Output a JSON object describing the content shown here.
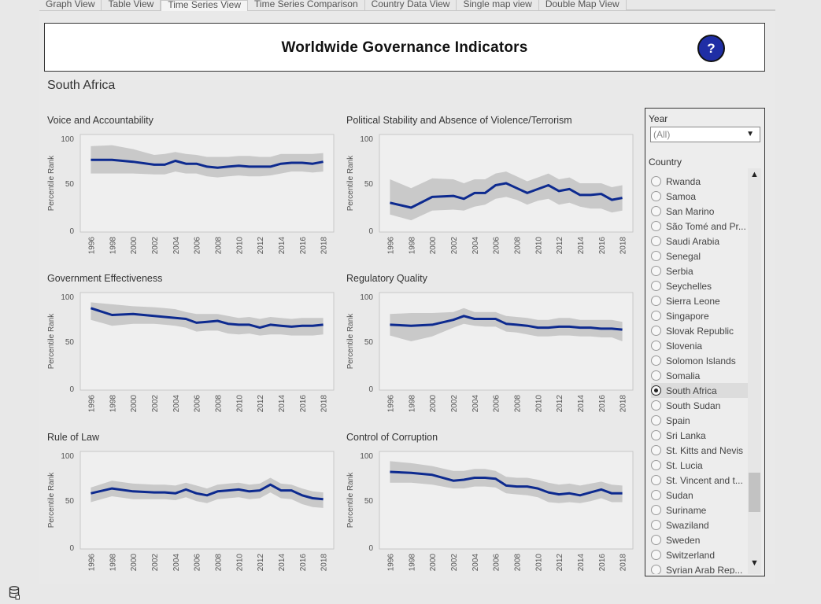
{
  "tabs": [
    {
      "label": "Graph View",
      "active": false
    },
    {
      "label": "Table View",
      "active": false
    },
    {
      "label": "Time Series View",
      "active": true
    },
    {
      "label": "Time Series Comparison",
      "active": false
    },
    {
      "label": "Country Data View",
      "active": false
    },
    {
      "label": "Single map view",
      "active": false
    },
    {
      "label": "Double Map View",
      "active": false
    }
  ],
  "header": {
    "title": "Worldwide Governance Indicators",
    "help_label": "?"
  },
  "country_heading": "South Africa",
  "chart_data": [
    {
      "type": "area",
      "title": "Voice and Accountability",
      "ylabel": "Percentile Rank",
      "ylim": [
        0,
        100
      ],
      "yticks": [
        0,
        50,
        100
      ],
      "x": [
        1996,
        1998,
        2000,
        2002,
        2003,
        2004,
        2005,
        2006,
        2007,
        2008,
        2009,
        2010,
        2011,
        2012,
        2013,
        2014,
        2015,
        2016,
        2017,
        2018
      ],
      "series": [
        {
          "values": [
            74,
            74,
            72,
            69,
            69,
            73,
            70,
            70,
            67,
            66,
            67,
            68,
            67,
            67,
            67,
            70,
            71,
            71,
            70,
            72
          ]
        },
        {
          "values": [
            60,
            60,
            60,
            59,
            59,
            62,
            60,
            60,
            57,
            56,
            57,
            58,
            57,
            57,
            58,
            60,
            62,
            62,
            61,
            62
          ]
        },
        {
          "values": [
            88,
            89,
            85,
            79,
            80,
            82,
            80,
            79,
            77,
            77,
            77,
            78,
            78,
            77,
            77,
            80,
            80,
            80,
            80,
            81
          ]
        }
      ]
    },
    {
      "type": "area",
      "title": "Political Stability and Absence of Violence/Terrorism",
      "ylabel": "Percentile Rank",
      "ylim": [
        0,
        100
      ],
      "yticks": [
        0,
        50,
        100
      ],
      "x": [
        1996,
        1998,
        2000,
        2002,
        2003,
        2004,
        2005,
        2006,
        2007,
        2008,
        2009,
        2010,
        2011,
        2012,
        2013,
        2014,
        2015,
        2016,
        2017,
        2018
      ],
      "series": [
        {
          "values": [
            30,
            25,
            36,
            37,
            34,
            40,
            40,
            48,
            50,
            45,
            40,
            44,
            48,
            42,
            44,
            38,
            38,
            39,
            33,
            35
          ]
        },
        {
          "values": [
            18,
            12,
            22,
            23,
            22,
            26,
            28,
            34,
            36,
            33,
            28,
            32,
            34,
            28,
            30,
            26,
            24,
            24,
            20,
            22
          ]
        },
        {
          "values": [
            54,
            45,
            55,
            54,
            50,
            54,
            54,
            60,
            62,
            57,
            52,
            56,
            60,
            54,
            56,
            50,
            50,
            50,
            46,
            48
          ]
        }
      ]
    },
    {
      "type": "area",
      "title": "Government Effectiveness",
      "ylabel": "Percentile Rank",
      "ylim": [
        0,
        100
      ],
      "yticks": [
        0,
        50,
        100
      ],
      "x": [
        1996,
        1998,
        2000,
        2002,
        2003,
        2004,
        2005,
        2006,
        2007,
        2008,
        2009,
        2010,
        2011,
        2012,
        2013,
        2014,
        2015,
        2016,
        2017,
        2018
      ],
      "series": [
        {
          "values": [
            84,
            77,
            78,
            76,
            75,
            74,
            73,
            69,
            70,
            71,
            68,
            67,
            67,
            64,
            67,
            66,
            65,
            66,
            66,
            67
          ]
        },
        {
          "values": [
            72,
            66,
            68,
            68,
            67,
            66,
            64,
            60,
            61,
            61,
            58,
            57,
            58,
            56,
            57,
            57,
            56,
            56,
            56,
            57
          ]
        },
        {
          "values": [
            90,
            88,
            86,
            85,
            84,
            83,
            80,
            78,
            78,
            78,
            76,
            74,
            75,
            73,
            75,
            74,
            73,
            74,
            74,
            74
          ]
        }
      ]
    },
    {
      "type": "area",
      "title": "Regulatory Quality",
      "ylabel": "Percentile Rank",
      "ylim": [
        0,
        100
      ],
      "yticks": [
        0,
        50,
        100
      ],
      "x": [
        1996,
        1998,
        2000,
        2002,
        2003,
        2004,
        2005,
        2006,
        2007,
        2008,
        2009,
        2010,
        2011,
        2012,
        2013,
        2014,
        2015,
        2016,
        2017,
        2018
      ],
      "series": [
        {
          "values": [
            67,
            66,
            67,
            72,
            76,
            73,
            73,
            73,
            68,
            67,
            66,
            64,
            64,
            65,
            65,
            64,
            64,
            63,
            63,
            62
          ]
        },
        {
          "values": [
            56,
            50,
            55,
            64,
            68,
            66,
            65,
            65,
            60,
            59,
            57,
            55,
            55,
            56,
            56,
            55,
            55,
            54,
            54,
            50
          ]
        },
        {
          "values": [
            78,
            79,
            79,
            80,
            84,
            80,
            80,
            80,
            76,
            75,
            74,
            72,
            72,
            74,
            74,
            72,
            72,
            72,
            72,
            70
          ]
        }
      ]
    },
    {
      "type": "area",
      "title": "Rule of Law",
      "ylabel": "Percentile Rank",
      "ylim": [
        0,
        100
      ],
      "yticks": [
        0,
        50,
        100
      ],
      "x": [
        1996,
        1998,
        2000,
        2002,
        2003,
        2004,
        2005,
        2006,
        2007,
        2008,
        2009,
        2010,
        2011,
        2012,
        2013,
        2014,
        2015,
        2016,
        2017,
        2018
      ],
      "series": [
        {
          "values": [
            57,
            62,
            59,
            58,
            58,
            57,
            61,
            57,
            55,
            59,
            60,
            61,
            59,
            60,
            66,
            60,
            60,
            55,
            52,
            51
          ]
        },
        {
          "values": [
            48,
            54,
            51,
            51,
            51,
            50,
            53,
            49,
            47,
            51,
            52,
            53,
            51,
            52,
            58,
            52,
            51,
            46,
            43,
            42
          ]
        },
        {
          "values": [
            63,
            70,
            67,
            66,
            66,
            65,
            68,
            65,
            62,
            66,
            67,
            68,
            66,
            67,
            73,
            67,
            66,
            62,
            59,
            58
          ]
        }
      ]
    },
    {
      "type": "area",
      "title": "Control of Corruption",
      "ylabel": "Percentile Rank",
      "ylim": [
        0,
        100
      ],
      "yticks": [
        0,
        50,
        100
      ],
      "x": [
        1996,
        1998,
        2000,
        2002,
        2003,
        2004,
        2005,
        2006,
        2007,
        2008,
        2009,
        2010,
        2011,
        2012,
        2013,
        2014,
        2015,
        2016,
        2017,
        2018
      ],
      "series": [
        {
          "values": [
            79,
            78,
            76,
            70,
            71,
            73,
            73,
            72,
            65,
            64,
            64,
            62,
            58,
            56,
            57,
            55,
            58,
            61,
            57,
            57
          ]
        },
        {
          "values": [
            68,
            68,
            66,
            62,
            62,
            64,
            64,
            63,
            57,
            56,
            55,
            53,
            48,
            47,
            48,
            47,
            49,
            52,
            48,
            48
          ]
        },
        {
          "values": [
            90,
            88,
            85,
            80,
            80,
            82,
            82,
            80,
            74,
            73,
            73,
            71,
            68,
            66,
            67,
            65,
            67,
            69,
            66,
            65
          ]
        }
      ]
    }
  ],
  "x_tick_labels": [
    "1996",
    "1998",
    "2000",
    "2002",
    "2004",
    "2006",
    "2008",
    "2010",
    "2012",
    "2014",
    "2016",
    "2018"
  ],
  "filter": {
    "year_label": "Year",
    "year_value": "(All)",
    "country_label": "Country",
    "countries": [
      {
        "name": "Rwanda",
        "selected": false
      },
      {
        "name": "Samoa",
        "selected": false
      },
      {
        "name": "San Marino",
        "selected": false
      },
      {
        "name": "São Tomé and Pr...",
        "selected": false
      },
      {
        "name": "Saudi Arabia",
        "selected": false
      },
      {
        "name": "Senegal",
        "selected": false
      },
      {
        "name": "Serbia",
        "selected": false
      },
      {
        "name": "Seychelles",
        "selected": false
      },
      {
        "name": "Sierra Leone",
        "selected": false
      },
      {
        "name": "Singapore",
        "selected": false
      },
      {
        "name": "Slovak Republic",
        "selected": false
      },
      {
        "name": "Slovenia",
        "selected": false
      },
      {
        "name": "Solomon Islands",
        "selected": false
      },
      {
        "name": "Somalia",
        "selected": false
      },
      {
        "name": "South Africa",
        "selected": true
      },
      {
        "name": "South Sudan",
        "selected": false
      },
      {
        "name": "Spain",
        "selected": false
      },
      {
        "name": "Sri Lanka",
        "selected": false
      },
      {
        "name": "St. Kitts and Nevis",
        "selected": false
      },
      {
        "name": "St. Lucia",
        "selected": false
      },
      {
        "name": "St. Vincent and t...",
        "selected": false
      },
      {
        "name": "Sudan",
        "selected": false
      },
      {
        "name": "Suriname",
        "selected": false
      },
      {
        "name": "Swaziland",
        "selected": false
      },
      {
        "name": "Sweden",
        "selected": false
      },
      {
        "name": "Switzerland",
        "selected": false
      },
      {
        "name": "Syrian Arab Rep...",
        "selected": false
      }
    ]
  },
  "colors": {
    "line": "#0d2a8f",
    "band": "#c9c9c9",
    "help_button": "#1f2ea5"
  },
  "icons": {
    "help": "question-circle-icon",
    "status": "database-icon",
    "scroll_up": "chevron-up-icon",
    "scroll_down": "chevron-down-icon",
    "dropdown": "caret-down-icon"
  }
}
